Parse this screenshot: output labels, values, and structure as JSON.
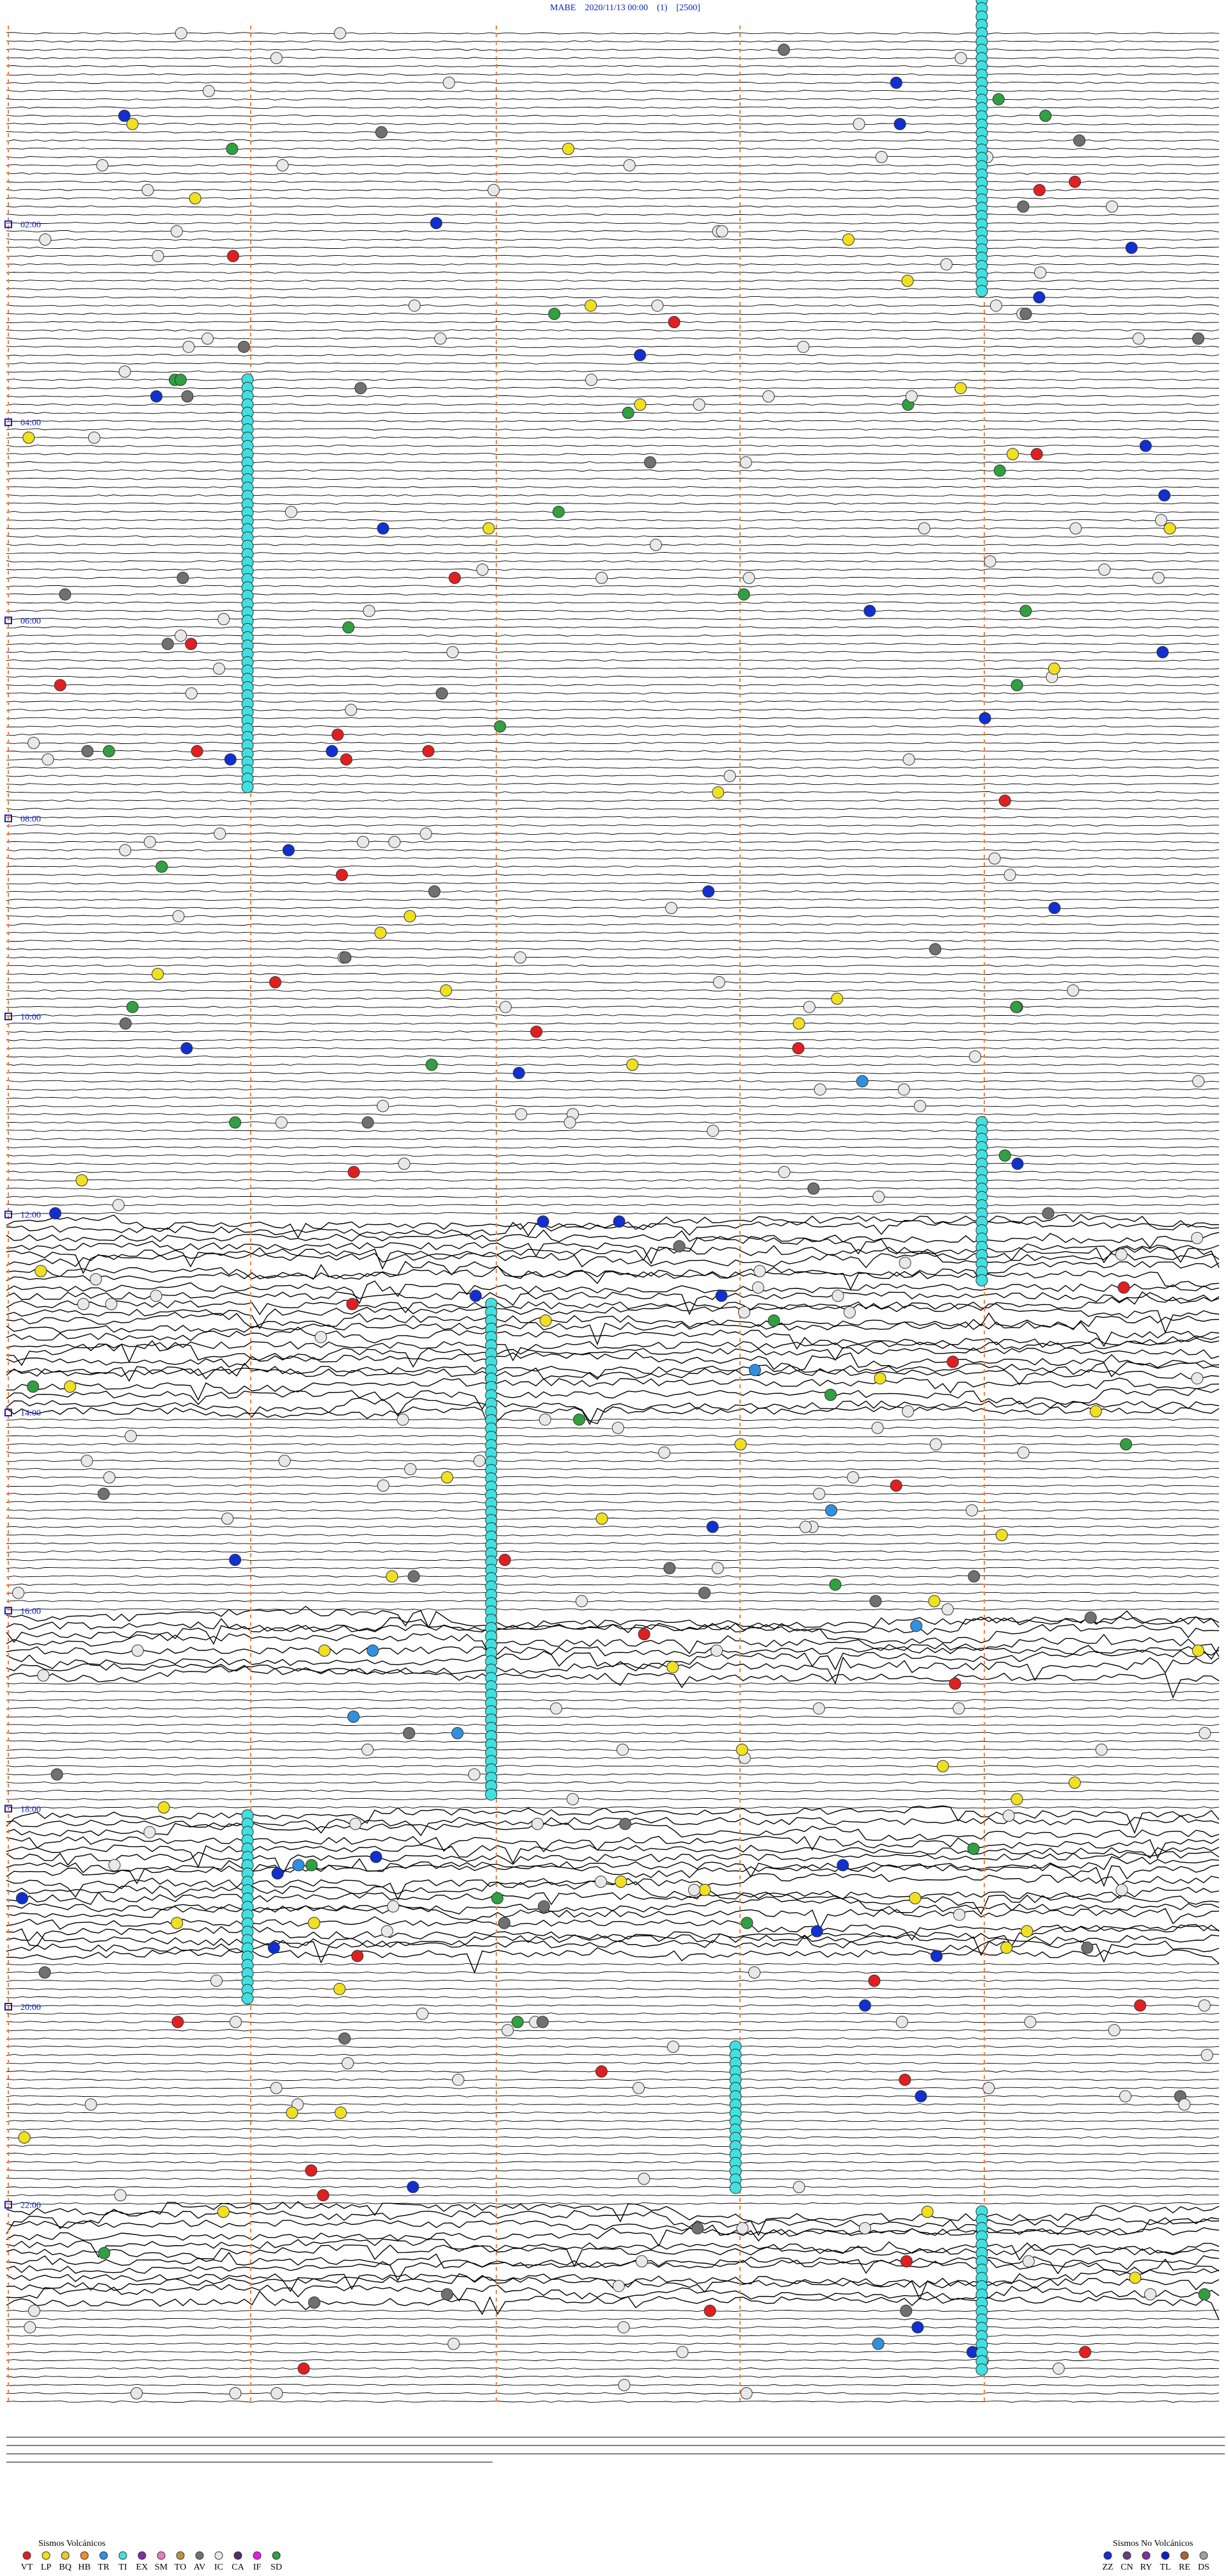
{
  "header": {
    "title": "MABE    2020/11/13 00:00    (1)    [2500]"
  },
  "time_labels": [
    "02:00",
    "04:00",
    "06:00",
    "08:00",
    "10:00",
    "12:00",
    "14:00",
    "16:00",
    "18:00",
    "20:00",
    "22:00"
  ],
  "legend_volcanic": {
    "title": "Sismos Volcánicos",
    "items": [
      {
        "code": "VT",
        "color": "#e02020"
      },
      {
        "code": "LP",
        "color": "#f0e020"
      },
      {
        "code": "BQ",
        "color": "#e8c830"
      },
      {
        "code": "HB",
        "color": "#f09020"
      },
      {
        "code": "TR",
        "color": "#3090e0"
      },
      {
        "code": "TI",
        "color": "#40e0e0"
      },
      {
        "code": "EX",
        "color": "#8030a0"
      },
      {
        "code": "SM",
        "color": "#e080c0"
      },
      {
        "code": "TO",
        "color": "#c09040"
      },
      {
        "code": "AV",
        "color": "#707070"
      },
      {
        "code": "IC",
        "color": "#e8e8e8"
      },
      {
        "code": "CA",
        "color": "#503060"
      },
      {
        "code": "IF",
        "color": "#e020e0"
      },
      {
        "code": "SD",
        "color": "#30a040"
      }
    ]
  },
  "legend_non_volcanic": {
    "title": "Sismos No Volcánicos",
    "items": [
      {
        "code": "ZZ",
        "color": "#1030d0"
      },
      {
        "code": "CN",
        "color": "#604080"
      },
      {
        "code": "RY",
        "color": "#8030a0"
      },
      {
        "code": "TL",
        "color": "#1020c0"
      },
      {
        "code": "RE",
        "color": "#b06030"
      },
      {
        "code": "DS",
        "color": "#a0a0a0"
      }
    ]
  }
}
